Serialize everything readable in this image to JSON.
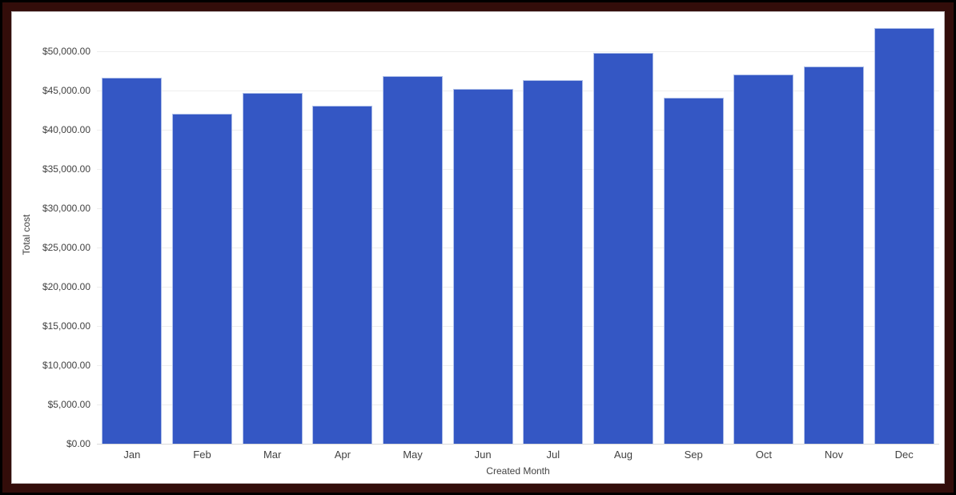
{
  "chart_data": {
    "type": "bar",
    "title": "",
    "xlabel": "Created Month",
    "ylabel": "Total cost",
    "categories": [
      "Jan",
      "Feb",
      "Mar",
      "Apr",
      "May",
      "Jun",
      "Jul",
      "Aug",
      "Sep",
      "Oct",
      "Nov",
      "Dec"
    ],
    "series": [
      {
        "name": "Total cost",
        "values": [
          46600,
          42000,
          44700,
          43100,
          46800,
          45200,
          46300,
          49800,
          44100,
          47000,
          48100,
          53000
        ]
      }
    ],
    "ylim": [
      0,
      55000
    ],
    "ytick_interval": 5000,
    "ytick_labels": [
      "$0.00",
      "$5,000.00",
      "$10,000.00",
      "$15,000.00",
      "$20,000.00",
      "$25,000.00",
      "$30,000.00",
      "$35,000.00",
      "$40,000.00",
      "$45,000.00",
      "$50,000.00"
    ],
    "grid": true,
    "legend": "none",
    "colors": {
      "bar": "#3457C4",
      "bar_edge": "#AEBFE9",
      "gridline": "#EEEEEE",
      "axis_line": "#D9D9D9",
      "tick_text": "#424242",
      "axis_title_text": "#424242"
    }
  },
  "frame": {
    "outer_color": "#000000",
    "border_color": "#330D0A",
    "canvas_color": "#FFFFFF"
  }
}
